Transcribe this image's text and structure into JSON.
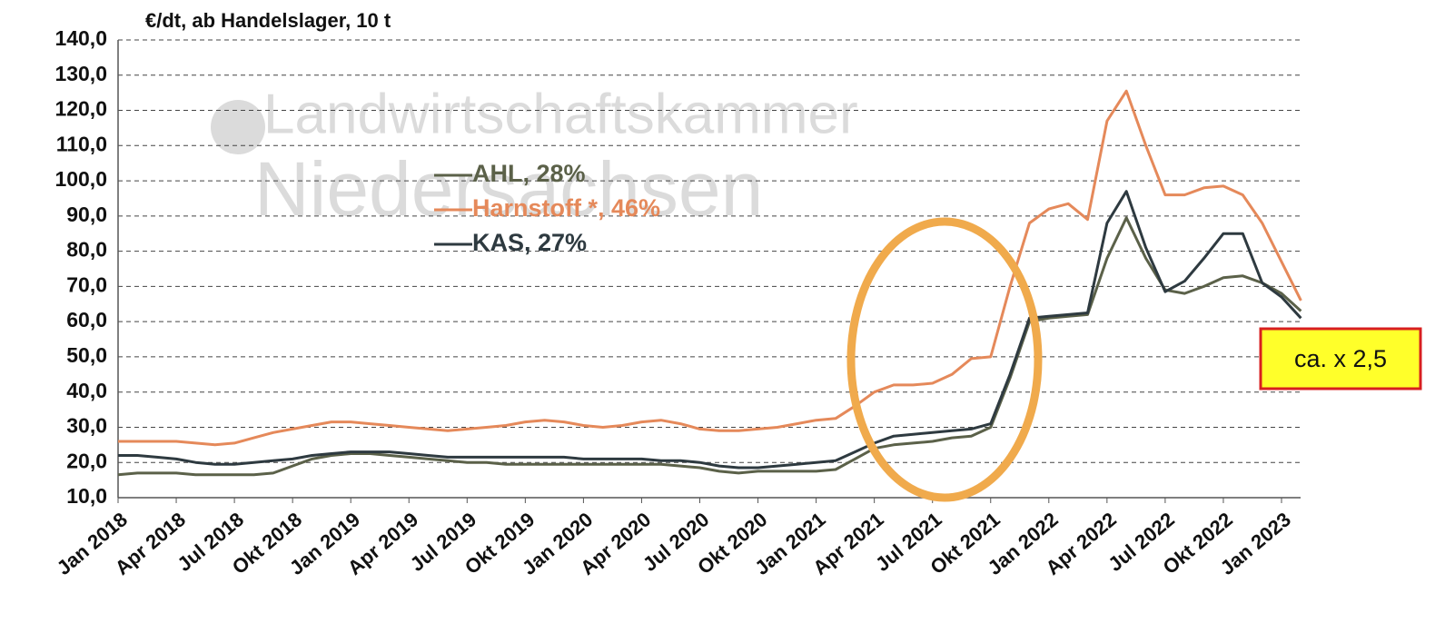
{
  "chart_data": {
    "type": "line",
    "title": "€/dt, ab Handelslager, 10 t",
    "watermark": [
      "Landwirtschaftskammer",
      "Niedersachsen"
    ],
    "annotation": "ca. x 2,5",
    "categories": [
      "Jan 2018",
      null,
      null,
      "Apr 2018",
      null,
      null,
      "Jul 2018",
      null,
      null,
      "Okt 2018",
      null,
      null,
      "Jan 2019",
      null,
      null,
      "Apr 2019",
      null,
      null,
      "Jul 2019",
      null,
      null,
      "Okt 2019",
      null,
      null,
      "Jan 2020",
      null,
      null,
      "Apr 2020",
      null,
      null,
      "Jul 2020",
      null,
      null,
      "Okt 2020",
      null,
      null,
      "Jan 2021",
      null,
      null,
      "Apr 2021",
      null,
      null,
      "Jul 2021",
      null,
      null,
      "Okt 2021",
      null,
      null,
      "Jan 2022",
      null,
      null,
      "Apr 2022",
      null,
      null,
      "Jul 2022",
      null,
      null,
      "Okt 2022",
      null,
      null,
      "Jan 2023",
      null
    ],
    "series": [
      {
        "name": "AHL, 28%",
        "color": "#5b6149",
        "values": [
          16.5,
          17,
          17,
          17,
          16.5,
          16.5,
          16.5,
          16.5,
          17,
          19,
          21,
          22,
          22.5,
          22.5,
          22,
          21.5,
          21,
          20.5,
          20,
          20,
          19.5,
          19.5,
          19.5,
          19.5,
          19.5,
          19.5,
          19.5,
          19.5,
          19.5,
          19,
          18.5,
          17.5,
          17,
          17.5,
          17.5,
          17.5,
          17.5,
          18,
          21,
          24,
          25,
          25.5,
          26,
          27,
          27.5,
          30,
          44,
          60,
          61,
          61.5,
          62,
          78,
          89.5,
          78,
          69,
          68,
          70,
          72.5,
          73,
          71,
          68,
          63
        ]
      },
      {
        "name": "Harnstoff *, 46%",
        "color": "#e5895a",
        "values": [
          26,
          26,
          26,
          26,
          25.5,
          25,
          25.5,
          27,
          28.5,
          29.5,
          30.5,
          31.5,
          31.5,
          31,
          30.5,
          30,
          29.5,
          29,
          29.5,
          30,
          30.5,
          31.5,
          32,
          31.5,
          30.5,
          30,
          30.5,
          31.5,
          32,
          31,
          29.5,
          29,
          29,
          29.5,
          30,
          31,
          32,
          32.5,
          36,
          40,
          42,
          42,
          42.5,
          45,
          49.5,
          50,
          70,
          88,
          92,
          93.5,
          89,
          117,
          125.5,
          110,
          96,
          96,
          98,
          98.5,
          96,
          88,
          77,
          66
        ]
      },
      {
        "name": "KAS, 27%",
        "color": "#2e3a40",
        "values": [
          22,
          22,
          21.5,
          21,
          20,
          19.5,
          19.5,
          20,
          20.5,
          21,
          22,
          22.5,
          23,
          23,
          23,
          22.5,
          22,
          21.5,
          21.5,
          21.5,
          21.5,
          21.5,
          21.5,
          21.5,
          21,
          21,
          21,
          21,
          20.5,
          20.5,
          20,
          19,
          18.5,
          18.5,
          19,
          19.5,
          20,
          20.5,
          23,
          25.5,
          27.5,
          28,
          28.5,
          29,
          29.5,
          31,
          45,
          61,
          61.5,
          62,
          62.5,
          88,
          97,
          81,
          68.5,
          71.5,
          78,
          85,
          85,
          71,
          67,
          61
        ]
      }
    ],
    "ylim": [
      10,
      140
    ],
    "yticks": [
      {
        "value": 10,
        "label": "10,0"
      },
      {
        "value": 20,
        "label": "20,0"
      },
      {
        "value": 30,
        "label": "30,0"
      },
      {
        "value": 40,
        "label": "40,0"
      },
      {
        "value": 50,
        "label": "50,0"
      },
      {
        "value": 60,
        "label": "60,0"
      },
      {
        "value": 70,
        "label": "70,0"
      },
      {
        "value": 80,
        "label": "80,0"
      },
      {
        "value": 90,
        "label": "90,0"
      },
      {
        "value": 100,
        "label": "100,0"
      },
      {
        "value": 110,
        "label": "110,0"
      },
      {
        "value": 120,
        "label": "120,0"
      },
      {
        "value": 130,
        "label": "130,0"
      },
      {
        "value": 140,
        "label": "140,0"
      }
    ],
    "grid": true
  }
}
